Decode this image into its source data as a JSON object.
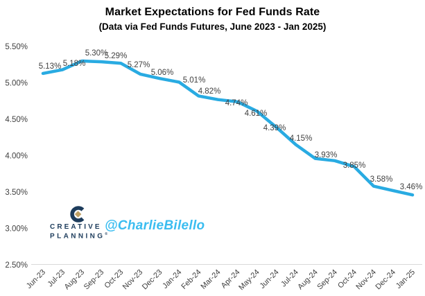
{
  "chart_data": {
    "type": "line",
    "title": "Market Expectations for Fed Funds Rate",
    "subtitle": "(Data via Fed Funds Futures, June 2023 - Jan 2025)",
    "categories": [
      "Jun-23",
      "Jul-23",
      "Aug-23",
      "Sep-23",
      "Oct-23",
      "Nov-23",
      "Dec-23",
      "Jan-24",
      "Feb-24",
      "Mar-24",
      "Apr-24",
      "May-24",
      "Jun-24",
      "Jul-24",
      "Aug-24",
      "Sep-24",
      "Oct-24",
      "Nov-24",
      "Dec-24",
      "Jan-25"
    ],
    "values": [
      5.13,
      5.18,
      5.3,
      5.29,
      5.27,
      5.12,
      5.06,
      5.01,
      4.82,
      4.77,
      4.74,
      4.61,
      4.39,
      4.15,
      3.96,
      3.93,
      3.85,
      3.58,
      3.52,
      3.46
    ],
    "data_labels": [
      "5.13%",
      "5.18%",
      "5.30%",
      "5.29%",
      "5.27%",
      null,
      "5.06%",
      "5.01%",
      "4.82%",
      null,
      "4.74%",
      "4.61%",
      "4.39%",
      "4.15%",
      null,
      "3.93%",
      "3.85%",
      "3.58%",
      null,
      "3.46%"
    ],
    "y_ticks": [
      "5.50%",
      "5.00%",
      "4.50%",
      "4.00%",
      "3.50%",
      "3.00%",
      "2.50%"
    ],
    "y_tick_values": [
      5.5,
      5.0,
      4.5,
      4.0,
      3.5,
      3.0,
      2.5
    ],
    "ylim": [
      2.5,
      5.5
    ],
    "xlabel": "",
    "ylabel": "",
    "grid": false,
    "legend": "none",
    "line_color": "#29abe2",
    "text_color": "#404040",
    "axis_line_color": "#d9d9d9"
  },
  "watermark": {
    "handle": "@CharlieBilello",
    "color": "#3bbdf0"
  },
  "logo": {
    "line1": "CREATIVE",
    "line2": "PLANNING",
    "trademark": "®",
    "navy": "#1d3c5c",
    "gold": "#bfa064"
  }
}
